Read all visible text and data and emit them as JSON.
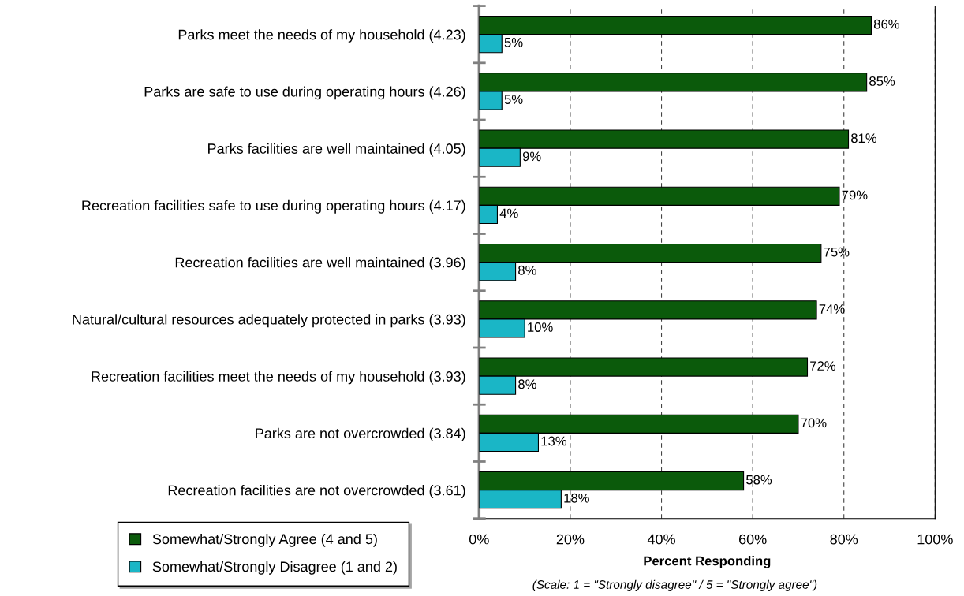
{
  "chart_data": {
    "type": "bar",
    "orientation": "horizontal",
    "categories": [
      "Parks meet the needs of my household (4.23)",
      "Parks are safe to use during operating hours (4.26)",
      "Parks facilities are well maintained (4.05)",
      "Recreation facilities safe to use during operating hours (4.17)",
      "Recreation facilities are well maintained (3.96)",
      "Natural/cultural resources adequately protected in parks (3.93)",
      "Recreation facilities meet the needs of my household (3.93)",
      "Parks are not overcrowded (3.84)",
      "Recreation facilities are not overcrowded (3.61)"
    ],
    "series": [
      {
        "name": "Somewhat/Strongly Agree (4 and 5)",
        "color": "#0b5a0b",
        "values": [
          86,
          85,
          81,
          79,
          75,
          74,
          72,
          70,
          58
        ],
        "value_labels": [
          "86%",
          "85%",
          "81%",
          "79%",
          "75%",
          "74%",
          "72%",
          "70%",
          "58%"
        ]
      },
      {
        "name": "Somewhat/Strongly Disagree (1 and 2)",
        "color": "#1ab6c6",
        "values": [
          5,
          5,
          9,
          4,
          8,
          10,
          8,
          13,
          18
        ],
        "value_labels": [
          "5%",
          "5%",
          "9%",
          "4%",
          "8%",
          "10%",
          "8%",
          "13%",
          "18%"
        ]
      }
    ],
    "xlim": [
      0,
      100
    ],
    "xticks": [
      {
        "value": 0,
        "label": "0%"
      },
      {
        "value": 20,
        "label": "20%"
      },
      {
        "value": 40,
        "label": "40%"
      },
      {
        "value": 60,
        "label": "60%"
      },
      {
        "value": 80,
        "label": "80%"
      },
      {
        "value": 100,
        "label": "100%"
      }
    ],
    "xlabel": "Percent Responding",
    "annotations": [
      "(Scale: 1 = \"Strongly disagree\" / 5 = \"Strongly agree\")"
    ],
    "grid": "x",
    "legend": "bottom left"
  }
}
